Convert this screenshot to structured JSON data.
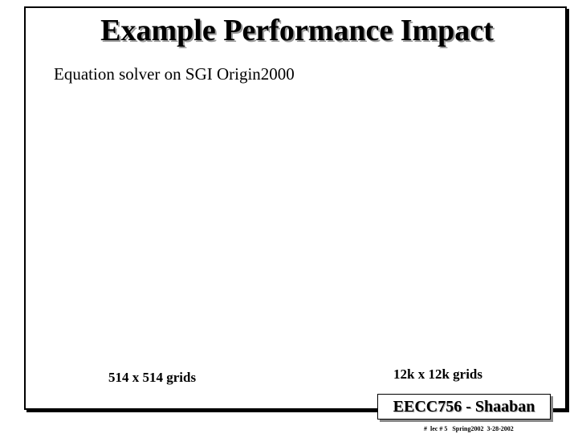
{
  "slide": {
    "title": "Example Performance Impact",
    "subtitle": "Equation solver on SGI Origin2000",
    "labels": [
      "514 x 514 grids",
      "12k x 12k grids"
    ],
    "footer": {
      "badge": "EECC756 - Shaaban",
      "note": "#  lec # 5   Spring2002  3-28-2002"
    }
  }
}
